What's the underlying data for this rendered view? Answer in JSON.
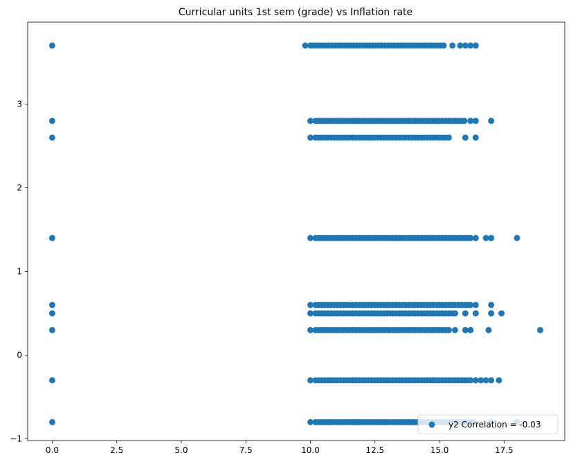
{
  "chart_data": {
    "type": "scatter",
    "title": "Curricular units 1st sem (grade) vs Inflation rate",
    "xlabel": "",
    "ylabel": "",
    "xlim": [
      -0.95,
      19.85
    ],
    "ylim": [
      -1.02,
      3.98
    ],
    "xticks": [
      0,
      2.5,
      5,
      7.5,
      10,
      12.5,
      15,
      17.5
    ],
    "xtick_labels": [
      "0.0",
      "2.5",
      "5.0",
      "7.5",
      "10.0",
      "12.5",
      "15.0",
      "17.5"
    ],
    "yticks": [
      -1,
      0,
      1,
      2,
      3
    ],
    "ytick_labels": [
      "−1",
      "0",
      "1",
      "2",
      "3"
    ],
    "grid": false,
    "legend": {
      "position": "bottom-right",
      "label": "y2 Correlation = -0.03"
    },
    "marker_color": "#1f77b4",
    "series": [
      {
        "name": "y2 Correlation = -0.03",
        "rows": [
          {
            "y": 3.7,
            "x_zero": true,
            "x_min": 9.8,
            "x_dense": [
              10.0,
              15.2
            ],
            "x_extra": [
              15.5,
              15.8,
              16.0,
              16.2,
              16.4
            ]
          },
          {
            "y": 2.8,
            "x_zero": true,
            "x_min": 10.0,
            "x_dense": [
              10.2,
              16.0
            ],
            "x_extra": [
              16.2,
              16.4,
              17.0
            ]
          },
          {
            "y": 2.6,
            "x_zero": true,
            "x_min": 10.0,
            "x_dense": [
              10.2,
              15.4
            ],
            "x_extra": [
              16.0,
              16.4
            ]
          },
          {
            "y": 1.4,
            "x_zero": true,
            "x_min": 10.0,
            "x_dense": [
              10.2,
              16.2
            ],
            "x_extra": [
              16.4,
              16.8,
              17.0,
              18.0
            ]
          },
          {
            "y": 0.6,
            "x_zero": true,
            "x_min": 10.0,
            "x_dense": [
              10.2,
              16.2
            ],
            "x_extra": [
              16.4,
              17.0
            ]
          },
          {
            "y": 0.5,
            "x_zero": true,
            "x_min": 10.0,
            "x_dense": [
              10.2,
              15.6
            ],
            "x_extra": [
              16.0,
              16.4,
              17.0,
              17.4
            ]
          },
          {
            "y": 0.3,
            "x_zero": true,
            "x_min": 10.0,
            "x_dense": [
              10.2,
              15.4
            ],
            "x_extra": [
              15.6,
              16.0,
              16.2,
              16.9,
              18.9
            ]
          },
          {
            "y": -0.3,
            "x_zero": true,
            "x_min": 10.0,
            "x_dense": [
              10.2,
              16.2
            ],
            "x_extra": [
              16.4,
              16.6,
              16.8,
              17.0,
              17.3
            ]
          },
          {
            "y": -0.8,
            "x_zero": true,
            "x_min": 10.0,
            "x_dense": [
              10.2,
              16.4
            ],
            "x_extra": [
              17.0,
              18.0
            ]
          }
        ]
      }
    ]
  }
}
